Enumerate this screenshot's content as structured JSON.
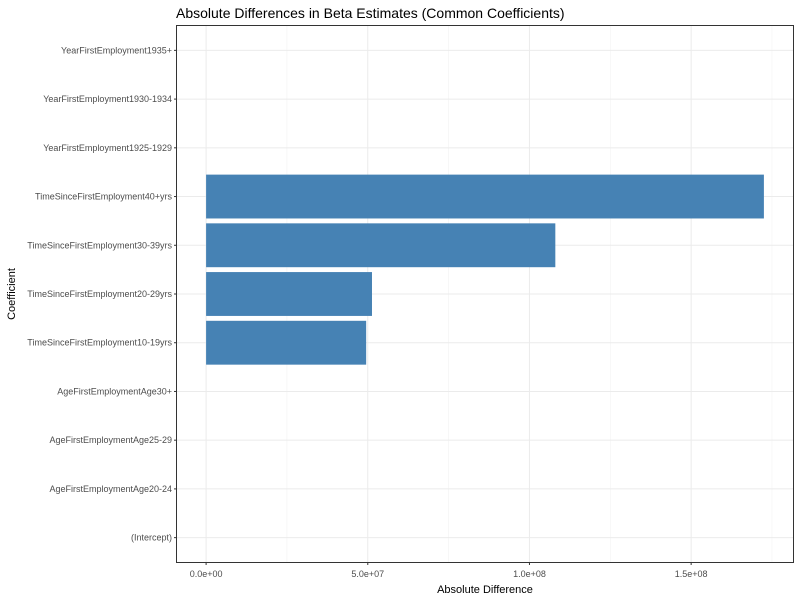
{
  "chart_data": {
    "type": "bar",
    "orientation": "horizontal",
    "title": "Absolute Differences in Beta Estimates (Common Coefficients)",
    "xlabel": "Absolute Difference",
    "ylabel": "Coefficient",
    "categories": [
      "(Intercept)",
      "AgeFirstEmploymentAge20-24",
      "AgeFirstEmploymentAge25-29",
      "AgeFirstEmploymentAge30+",
      "TimeSinceFirstEmployment10-19yrs",
      "TimeSinceFirstEmployment20-29yrs",
      "TimeSinceFirstEmployment30-39yrs",
      "TimeSinceFirstEmployment40+yrs",
      "YearFirstEmployment1925-1929",
      "YearFirstEmployment1930-1934",
      "YearFirstEmployment1935+"
    ],
    "values": [
      0,
      0,
      0,
      0,
      49500000,
      51300000,
      108000000,
      172500000,
      0,
      0,
      0
    ],
    "xlim": [
      -9000000,
      181500000
    ],
    "xticks": [
      0,
      50000000,
      100000000,
      150000000
    ],
    "xtick_labels": [
      "0.0e+00",
      "5.0e+07",
      "1.0e+08",
      "1.5e+08"
    ],
    "bar_color": "#4682b4",
    "grid": true,
    "legend": "none"
  }
}
